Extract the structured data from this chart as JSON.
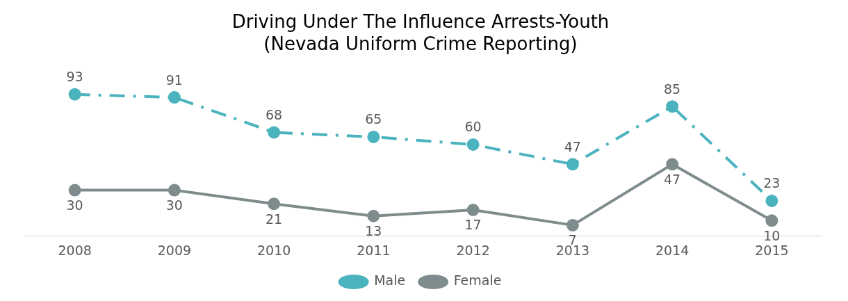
{
  "chart_data": {
    "type": "line",
    "title": [
      "Driving Under The Influence Arrests-Youth",
      "(Nevada Uniform Crime Reporting)"
    ],
    "categories": [
      "2008",
      "2009",
      "2010",
      "2011",
      "2012",
      "2013",
      "2014",
      "2015"
    ],
    "series": [
      {
        "name": "Male",
        "color": "#4bb3be",
        "line_style": "dashed",
        "values": [
          93,
          91,
          68,
          65,
          60,
          47,
          85,
          23
        ]
      },
      {
        "name": "Female",
        "color": "#7f8c8d",
        "line_style": "solid",
        "values": [
          30,
          30,
          21,
          13,
          17,
          7,
          47,
          10
        ]
      }
    ],
    "data_labels": true,
    "legend": "bottom",
    "marker": "circle",
    "grid": false
  }
}
